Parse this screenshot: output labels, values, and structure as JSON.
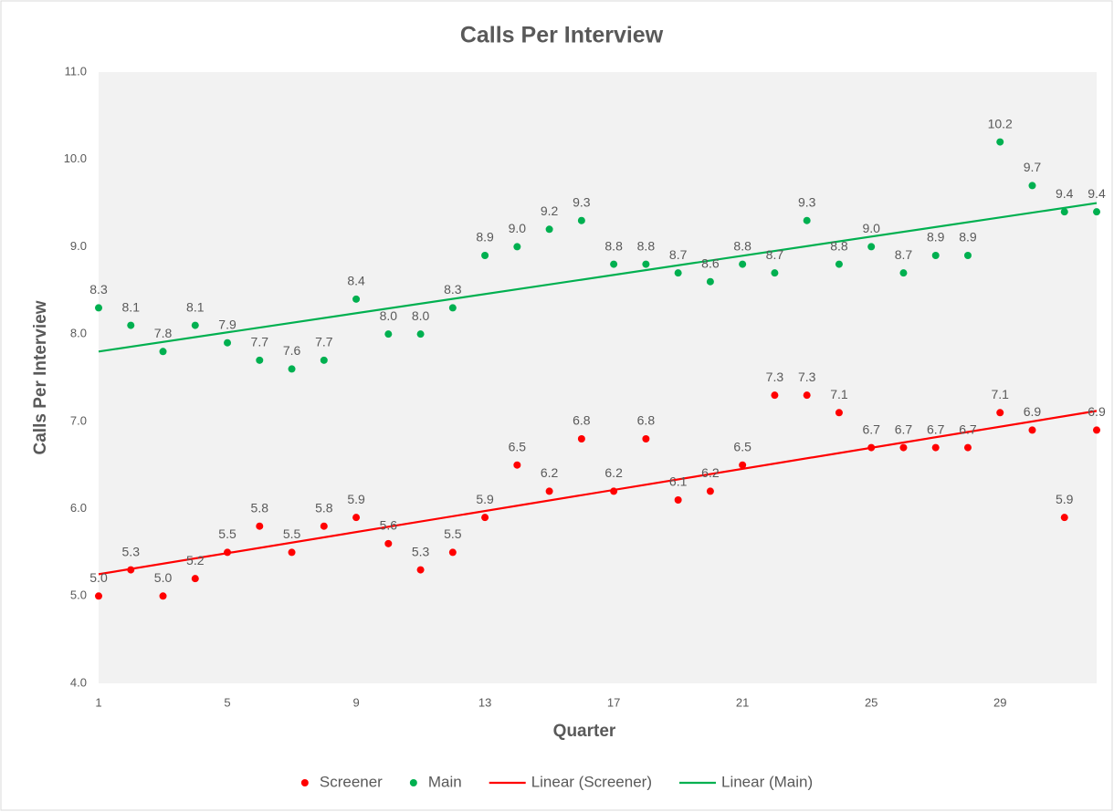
{
  "chart_data": {
    "type": "scatter",
    "title": "Calls Per Interview",
    "x_label": "Quarter",
    "y_label": "Calls Per Interview",
    "x": [
      1,
      2,
      3,
      4,
      5,
      6,
      7,
      8,
      9,
      10,
      11,
      12,
      13,
      14,
      15,
      16,
      17,
      18,
      19,
      20,
      21,
      22,
      23,
      24,
      25,
      26,
      27,
      28,
      29,
      30,
      31,
      32
    ],
    "xlim": [
      1,
      32
    ],
    "xticks": [
      1,
      5,
      9,
      13,
      17,
      21,
      25,
      29
    ],
    "ylim": [
      4,
      11
    ],
    "yticks": [
      {
        "value": 4,
        "label": "4.0"
      },
      {
        "value": 5,
        "label": "5.0"
      },
      {
        "value": 6,
        "label": "6.0"
      },
      {
        "value": 7,
        "label": "7.0"
      },
      {
        "value": 8,
        "label": "8.0"
      },
      {
        "value": 9,
        "label": "9.0"
      },
      {
        "value": 10,
        "label": "10.0"
      },
      {
        "value": 11,
        "label": "11.0"
      }
    ],
    "series": [
      {
        "name": "Screener",
        "color": "#ff0000",
        "values": [
          5.0,
          5.3,
          5.0,
          5.2,
          5.5,
          5.8,
          5.5,
          5.8,
          5.9,
          5.6,
          5.3,
          5.5,
          5.9,
          6.5,
          6.2,
          6.8,
          6.2,
          6.8,
          6.1,
          6.2,
          6.5,
          7.3,
          7.3,
          7.1,
          6.7,
          6.7,
          6.7,
          6.7,
          7.1,
          6.9,
          5.9,
          6.9
        ],
        "value_labels": [
          "5.0",
          "5.3",
          "5.0",
          "5.2",
          "5.5",
          "5.8",
          "5.5",
          "5.8",
          "5.9",
          "5.6",
          "5.3",
          "5.5",
          "5.9",
          "6.5",
          "6.2",
          "6.8",
          "6.2",
          "6.8",
          "6.1",
          "6.2",
          "6.5",
          "7.3",
          "7.3",
          "7.1",
          "6.7",
          "6.7",
          "6.7",
          "6.7",
          "7.1",
          "6.9",
          "5.9",
          "6.9"
        ]
      },
      {
        "name": "Main",
        "color": "#00b050",
        "values": [
          8.3,
          8.1,
          7.8,
          8.1,
          7.9,
          7.7,
          7.6,
          7.7,
          8.4,
          8.0,
          8.0,
          8.3,
          8.9,
          9.0,
          9.2,
          9.3,
          8.8,
          8.8,
          8.7,
          8.6,
          8.8,
          8.7,
          9.3,
          8.8,
          9.0,
          8.7,
          8.9,
          8.9,
          10.2,
          9.7,
          9.4,
          9.4
        ],
        "value_labels": [
          "8.3",
          "8.1",
          "7.8",
          "8.1",
          "7.9",
          "7.7",
          "7.6",
          "7.7",
          "8.4",
          "8.0",
          "8.0",
          "8.3",
          "8.9",
          "9.0",
          "9.2",
          "9.3",
          "8.8",
          "8.8",
          "8.7",
          "8.6",
          "8.8",
          "8.7",
          "9.3",
          "8.8",
          "9.0",
          "8.7",
          "8.9",
          "8.9",
          "10.2",
          "9.7",
          "9.4",
          "9.4"
        ]
      }
    ],
    "trendlines": [
      {
        "name": "Linear (Screener)",
        "color": "#ff0000",
        "x": [
          1,
          32
        ],
        "values": [
          5.25,
          7.12
        ]
      },
      {
        "name": "Linear (Main)",
        "color": "#00b050",
        "x": [
          1,
          32
        ],
        "values": [
          7.8,
          9.5
        ]
      }
    ],
    "legend": "bottom"
  }
}
